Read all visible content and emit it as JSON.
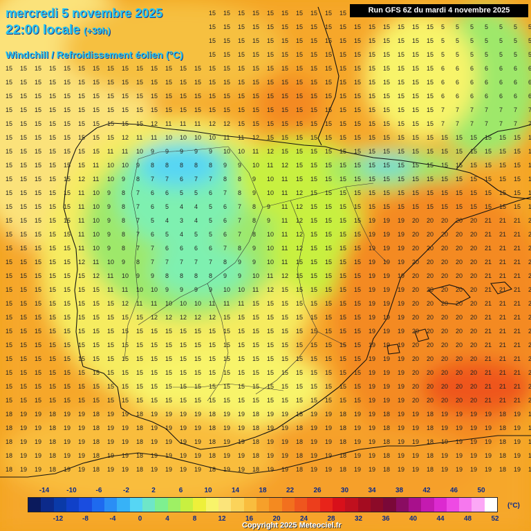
{
  "header": {
    "date_line": "mercredi 5 novembre 2025",
    "time_main": "22:00 locale",
    "time_offset": "(+39h)",
    "parameter": "Windchill / Refroidissement éolien (°C)",
    "run_info": "Run GFS 6Z du mardi 4 novembre 2025"
  },
  "legend": {
    "top_labels": [
      "-14",
      "-10",
      "-6",
      "-2",
      "2",
      "6",
      "10",
      "14",
      "18",
      "22",
      "26",
      "30",
      "34",
      "38",
      "42",
      "46",
      "50"
    ],
    "bottom_labels": [
      "-12",
      "-8",
      "-4",
      "0",
      "4",
      "8",
      "12",
      "16",
      "20",
      "24",
      "28",
      "32",
      "36",
      "40",
      "44",
      "48",
      "52"
    ],
    "unit": "(°C)",
    "colors": [
      "#0b1a5c",
      "#0c2a8a",
      "#0a3aa8",
      "#1040c8",
      "#1a4de0",
      "#1e6aef",
      "#2a8ef5",
      "#37b2f7",
      "#56d6f4",
      "#6ee6c8",
      "#7ef090",
      "#9ef064",
      "#c8f040",
      "#eef03a",
      "#f8f46a",
      "#fbe47a",
      "#fbd35a",
      "#f9bd3e",
      "#f6a02a",
      "#f48a20",
      "#f2701e",
      "#ef561e",
      "#ec3e1c",
      "#e8241a",
      "#d8101a",
      "#c0101e",
      "#a40c20",
      "#8c0a28",
      "#7a0838",
      "#8a0c62",
      "#a8108c",
      "#c41ab0",
      "#dc2ad0",
      "#ee4ae4",
      "#f678ee",
      "#fca8f6",
      "#ffffff"
    ]
  },
  "copyright": "Copyright 2025 Meteociel.fr"
}
